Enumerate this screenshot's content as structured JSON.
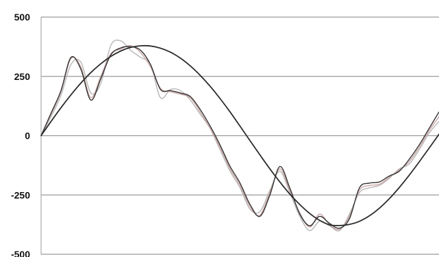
{
  "chart_data": {
    "type": "line",
    "title": "",
    "xlabel": "",
    "ylabel": "",
    "ylim": [
      -500,
      500
    ],
    "yticks": [
      500,
      250,
      0,
      -250,
      -500
    ],
    "ytick_labels": [
      "500",
      "250",
      "0",
      "-250",
      "-500"
    ],
    "grid": true,
    "legend": "none",
    "x": [
      0,
      2.5,
      5,
      7.5,
      10,
      12.5,
      15,
      17.5,
      20,
      22.5,
      25,
      27.5,
      30,
      32.5,
      35,
      37.5,
      40,
      42.5,
      45,
      47.5,
      50,
      52.5,
      55,
      57.5,
      60,
      62.5,
      65,
      67.5,
      70,
      72.5,
      75,
      77.5,
      80,
      82.5,
      85,
      87.5,
      90,
      92.5,
      95,
      97.5,
      100
    ],
    "series": [
      {
        "color": "#2b2b2b",
        "values": [
          0,
          60,
          118,
          172,
          222,
          266,
          303,
          334,
          357,
          372,
          379,
          378,
          369,
          352,
          327,
          294,
          254,
          208,
          156,
          100,
          40,
          -21,
          -81,
          -140,
          -195,
          -246,
          -290,
          -328,
          -357,
          -376,
          -379,
          -374,
          -361,
          -338,
          -306,
          -266,
          -219,
          -167,
          -111,
          -53,
          6
        ]
      },
      {
        "color": "#333333",
        "values": [
          0,
          95,
          190,
          330,
          280,
          150,
          240,
          340,
          370,
          375,
          360,
          300,
          195,
          190,
          180,
          165,
          110,
          40,
          -40,
          -130,
          -200,
          -290,
          -340,
          -250,
          -130,
          -220,
          -330,
          -380,
          -340,
          -370,
          -390,
          -350,
          -220,
          -200,
          -195,
          -170,
          -150,
          -100,
          -40,
          30,
          100
        ]
      },
      {
        "color": "#c9a0a0",
        "values": [
          0,
          90,
          185,
          325,
          290,
          160,
          250,
          345,
          365,
          380,
          350,
          290,
          200,
          185,
          175,
          160,
          100,
          30,
          -50,
          -140,
          -210,
          -300,
          -335,
          -240,
          -140,
          -230,
          -325,
          -385,
          -330,
          -375,
          -395,
          -340,
          -230,
          -210,
          -205,
          -175,
          -145,
          -110,
          -50,
          20,
          80
        ]
      },
      {
        "color": "#b7b7b7",
        "values": [
          0,
          80,
          170,
          300,
          310,
          180,
          220,
          380,
          400,
          360,
          330,
          300,
          160,
          195,
          190,
          150,
          90,
          30,
          -60,
          -150,
          -220,
          -310,
          -320,
          -230,
          -150,
          -240,
          -340,
          -400,
          -360,
          -380,
          -400,
          -330,
          -240,
          -220,
          -210,
          -180,
          -140,
          -120,
          -60,
          10,
          60
        ]
      }
    ]
  }
}
